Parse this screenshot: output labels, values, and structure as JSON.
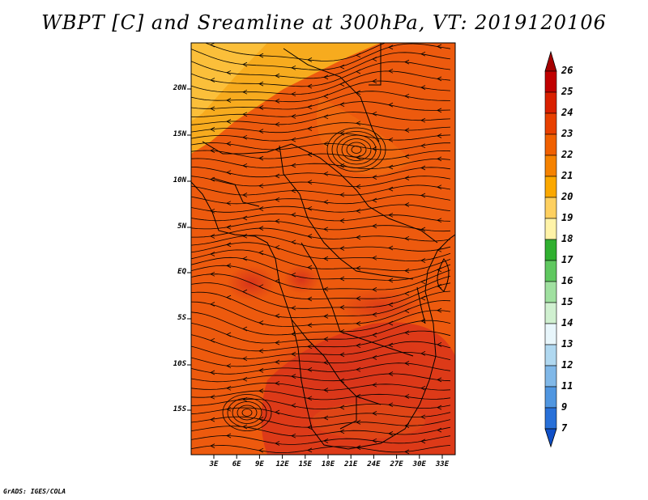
{
  "title": "WBPT [C] and Sreamline at 300hPa, VT: 2019120106",
  "credit": "GrADS: IGES/COLA",
  "map": {
    "lat_labels": [
      "20N",
      "15N",
      "10N",
      "5N",
      "EQ",
      "5S",
      "10S",
      "15S"
    ],
    "lon_labels": [
      "3E",
      "6E",
      "9E",
      "12E",
      "15E",
      "18E",
      "21E",
      "24E",
      "27E",
      "30E",
      "33E"
    ]
  },
  "colorbar": {
    "levels": [
      "26",
      "25",
      "24",
      "23",
      "22",
      "21",
      "20",
      "19",
      "18",
      "17",
      "16",
      "15",
      "14",
      "13",
      "12",
      "11",
      "9",
      "7"
    ],
    "colors": [
      "#a50000",
      "#c00000",
      "#d92000",
      "#e84000",
      "#f06000",
      "#f58200",
      "#fba800",
      "#fed060",
      "#fff3a8",
      "#30b030",
      "#60c860",
      "#a0e0a0",
      "#d0f0d0",
      "#e8f6fb",
      "#b0d8f0",
      "#80b8e8",
      "#5096e0",
      "#2870d8",
      "#1050c8"
    ]
  }
}
